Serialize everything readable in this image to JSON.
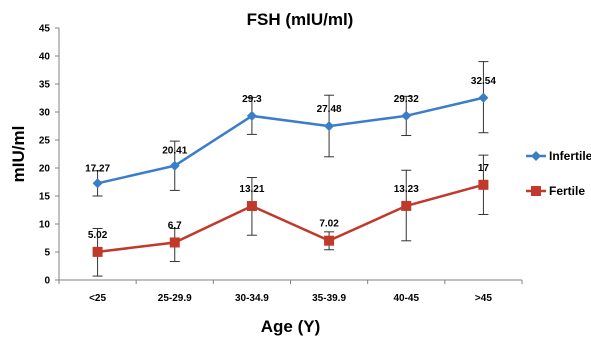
{
  "chart_data": {
    "type": "line",
    "title": "FSH (mIU/ml)",
    "xlabel": "Age (Y)",
    "ylabel": "mIU/ml",
    "categories": [
      "<25",
      "25-29.9",
      "30-34.9",
      "35-39.9",
      "40-45",
      ">45"
    ],
    "ylim": [
      0,
      45
    ],
    "yticks": [
      0,
      5,
      10,
      15,
      20,
      25,
      30,
      35,
      40,
      45
    ],
    "grid": false,
    "legend_position": "right",
    "series": [
      {
        "name": "Infertile",
        "color": "#3a7dc9",
        "marker": "diamond",
        "values": [
          17.27,
          20.41,
          29.3,
          27.48,
          29.32,
          32.54
        ],
        "labels": [
          "17.27",
          "20.41",
          "29.3",
          "27.48",
          "29.32",
          "32.54"
        ],
        "error_low": [
          15.0,
          16.0,
          26.0,
          22.0,
          25.8,
          26.3
        ],
        "error_high": [
          19.5,
          24.8,
          32.6,
          33.0,
          32.8,
          39.0
        ]
      },
      {
        "name": "Fertile",
        "color": "#c0392b",
        "marker": "square",
        "values": [
          5.02,
          6.7,
          13.21,
          7.02,
          13.23,
          17
        ],
        "labels": [
          "5.02",
          "6.7",
          "13.21",
          "7.02",
          "13.23",
          "17"
        ],
        "error_low": [
          0.7,
          3.3,
          8.0,
          5.4,
          7.0,
          11.7
        ],
        "error_high": [
          9.2,
          9.2,
          18.3,
          8.6,
          19.6,
          22.3
        ]
      }
    ]
  }
}
